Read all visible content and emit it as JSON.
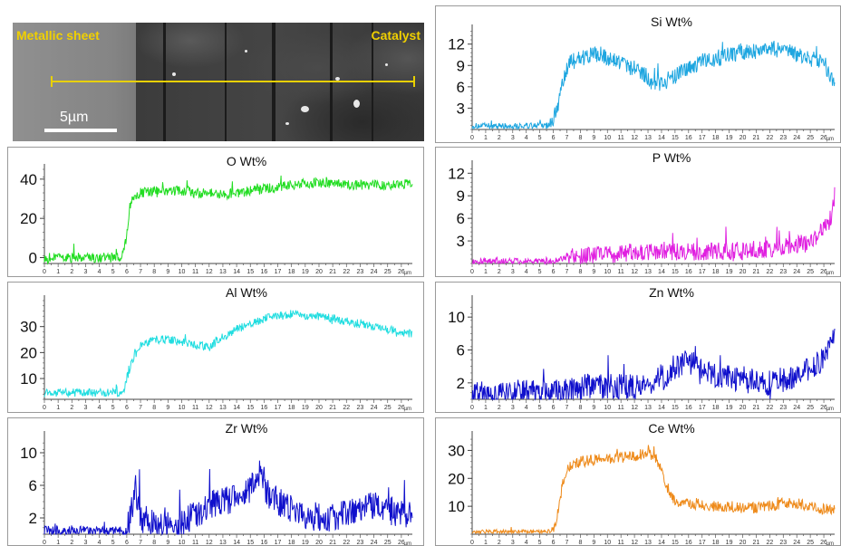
{
  "sem": {
    "left_label": "Metallic sheet",
    "right_label": "Catalyst",
    "scale_label": "5µm",
    "line_color": "#e8d000",
    "label_color": "#f0d000"
  },
  "chart_data": [
    {
      "id": "si",
      "type": "line",
      "title": "Si Wt%",
      "color": "#1ea6e0",
      "x_unit": "µm",
      "xlim": [
        0,
        26.8
      ],
      "ylim": [
        0,
        14
      ],
      "yticks": [
        3,
        6,
        9,
        12
      ],
      "xticks": [
        0,
        1,
        2,
        3,
        4,
        5,
        6,
        7,
        8,
        9,
        10,
        11,
        12,
        13,
        14,
        15,
        16,
        17,
        18,
        19,
        20,
        21,
        22,
        23,
        24,
        25,
        26
      ],
      "series": [
        {
          "x": [
            0,
            2,
            4,
            5.5,
            6,
            6.4,
            6.8,
            7.2,
            8,
            9,
            10,
            11,
            12,
            13,
            13.5,
            14,
            15,
            16,
            17,
            18,
            19,
            20,
            21,
            22,
            23,
            24,
            25,
            26,
            26.8
          ],
          "y": [
            0.5,
            0.5,
            0.5,
            0.5,
            1.5,
            4,
            7,
            9.5,
            10,
            10.5,
            10,
            9.5,
            8.5,
            7.5,
            6.5,
            6.5,
            7.5,
            8.5,
            9.5,
            10,
            10.5,
            11,
            11,
            11.5,
            11,
            10.5,
            10,
            9.5,
            6.5
          ],
          "noise": 1.2
        }
      ]
    },
    {
      "id": "o",
      "type": "line",
      "title": "O Wt%",
      "color": "#22dd22",
      "x_unit": "µm",
      "xlim": [
        0,
        26.8
      ],
      "ylim": [
        -3,
        45
      ],
      "yticks": [
        0,
        20,
        40
      ],
      "xticks": [
        0,
        1,
        2,
        3,
        4,
        5,
        6,
        7,
        8,
        9,
        10,
        11,
        12,
        13,
        14,
        15,
        16,
        17,
        18,
        19,
        20,
        21,
        22,
        23,
        24,
        25,
        26
      ],
      "series": [
        {
          "x": [
            0,
            2,
            4,
            5.5,
            5.8,
            6,
            6.2,
            6.5,
            7,
            8,
            9,
            10,
            11,
            12,
            13,
            14,
            15,
            16,
            17,
            18,
            19,
            20,
            21,
            22,
            23,
            24,
            25,
            26,
            26.8
          ],
          "y": [
            0,
            0,
            0,
            0,
            3,
            12,
            25,
            31,
            33,
            34,
            34,
            34,
            33,
            33,
            32,
            33,
            34,
            35,
            36,
            37,
            38,
            38,
            38,
            37,
            37,
            37,
            37,
            37,
            38
          ],
          "noise": 2.5
        }
      ]
    },
    {
      "id": "p",
      "type": "line",
      "title": "P Wt%",
      "color": "#e020e0",
      "x_unit": "µm",
      "xlim": [
        0,
        26.8
      ],
      "ylim": [
        0,
        13
      ],
      "yticks": [
        3,
        6,
        9,
        12
      ],
      "xticks": [
        0,
        1,
        2,
        3,
        4,
        5,
        6,
        7,
        8,
        9,
        10,
        11,
        12,
        13,
        14,
        15,
        16,
        17,
        18,
        19,
        20,
        21,
        22,
        23,
        24,
        25,
        26
      ],
      "series": [
        {
          "x": [
            0,
            2,
            4,
            6,
            7,
            8,
            10,
            12,
            14,
            16,
            18,
            20,
            22,
            24,
            25,
            26,
            26.5,
            26.8
          ],
          "y": [
            0.3,
            0.3,
            0.3,
            0.3,
            0.8,
            1,
            1.2,
            1.4,
            1.5,
            1.5,
            1.6,
            1.7,
            2,
            2.5,
            3,
            4.5,
            6,
            9
          ],
          "noise": 1.2
        }
      ]
    },
    {
      "id": "al",
      "type": "line",
      "title": "Al Wt%",
      "color": "#20dde0",
      "x_unit": "µm",
      "xlim": [
        0,
        26.8
      ],
      "ylim": [
        2,
        40
      ],
      "yticks": [
        10,
        20,
        30
      ],
      "xticks": [
        0,
        1,
        2,
        3,
        4,
        5,
        6,
        7,
        8,
        9,
        10,
        11,
        12,
        13,
        14,
        15,
        16,
        17,
        18,
        19,
        20,
        21,
        22,
        23,
        24,
        25,
        26
      ],
      "series": [
        {
          "x": [
            0,
            2,
            4,
            5.5,
            5.8,
            6,
            6.4,
            7,
            8,
            9,
            10,
            11,
            12,
            13,
            14,
            15,
            16,
            17,
            18,
            19,
            20,
            21,
            22,
            23,
            24,
            25,
            26,
            26.8
          ],
          "y": [
            4.5,
            4.5,
            4.5,
            4.5,
            6,
            10,
            17,
            23,
            25,
            25,
            24,
            23,
            22,
            26,
            29,
            31,
            33,
            34,
            35,
            34,
            34,
            33,
            32,
            31,
            30,
            29,
            28,
            27
          ],
          "noise": 1.6
        }
      ]
    },
    {
      "id": "zn",
      "type": "line",
      "title": "Zn Wt%",
      "color": "#1010cc",
      "x_unit": "µm",
      "xlim": [
        0,
        26.8
      ],
      "ylim": [
        0,
        12
      ],
      "yticks": [
        2,
        6,
        10
      ],
      "xticks": [
        0,
        1,
        2,
        3,
        4,
        5,
        6,
        7,
        8,
        9,
        10,
        11,
        12,
        13,
        14,
        15,
        16,
        17,
        18,
        19,
        20,
        21,
        22,
        23,
        24,
        25,
        26
      ],
      "series": [
        {
          "x": [
            0,
            2,
            4,
            6,
            7,
            8,
            10,
            12,
            13,
            14,
            15,
            16,
            17,
            18,
            19,
            20,
            21,
            22,
            23,
            24,
            25,
            26,
            26.8
          ],
          "y": [
            0.8,
            0.8,
            0.8,
            0.8,
            1.2,
            1.5,
            1.5,
            1.5,
            1.8,
            2.5,
            4,
            4.5,
            3.5,
            3,
            2.5,
            2.5,
            2,
            2,
            2.5,
            3,
            3.5,
            5,
            7.5
          ],
          "noise": 1.6
        }
      ]
    },
    {
      "id": "zr",
      "type": "line",
      "title": "Zr Wt%",
      "color": "#1010cc",
      "x_unit": "µm",
      "xlim": [
        0,
        26.8
      ],
      "ylim": [
        0,
        12
      ],
      "yticks": [
        2,
        6,
        10
      ],
      "xticks": [
        0,
        1,
        2,
        3,
        4,
        5,
        6,
        7,
        8,
        9,
        10,
        11,
        12,
        13,
        14,
        15,
        16,
        17,
        18,
        19,
        20,
        21,
        22,
        23,
        24,
        25,
        26
      ],
      "series": [
        {
          "x": [
            0,
            2,
            4,
            6,
            6.4,
            6.6,
            6.8,
            7,
            8,
            10,
            11,
            12,
            13,
            14,
            15,
            15.8,
            16.2,
            17,
            18,
            19,
            20,
            21,
            22,
            23,
            24,
            25,
            26,
            26.8
          ],
          "y": [
            0.5,
            0.5,
            0.5,
            0.5,
            3.5,
            6,
            4,
            2,
            1.2,
            1.2,
            2.5,
            3.5,
            4,
            4.5,
            5.5,
            8,
            5,
            4,
            3,
            2.5,
            2,
            2,
            2.5,
            3,
            3.5,
            3,
            2.5,
            2
          ],
          "noise": 1.8
        }
      ]
    },
    {
      "id": "ce",
      "type": "line",
      "title": "Ce Wt%",
      "color": "#ee8a1a",
      "x_unit": "µm",
      "xlim": [
        0,
        26.8
      ],
      "ylim": [
        0,
        35
      ],
      "yticks": [
        10,
        20,
        30
      ],
      "xticks": [
        0,
        1,
        2,
        3,
        4,
        5,
        6,
        7,
        8,
        9,
        10,
        11,
        12,
        13,
        14,
        15,
        16,
        17,
        18,
        19,
        20,
        21,
        22,
        23,
        24,
        25,
        26
      ],
      "series": [
        {
          "x": [
            0,
            2,
            4,
            5.8,
            6.2,
            6.6,
            7,
            8,
            9,
            10,
            11,
            12,
            13,
            13.5,
            14,
            14.5,
            15,
            16,
            17,
            18,
            19,
            20,
            21,
            22,
            23,
            24,
            25,
            26,
            26.8
          ],
          "y": [
            1,
            1,
            1,
            1,
            4,
            15,
            24,
            26,
            26.5,
            27,
            27.5,
            28,
            29,
            28,
            23,
            16,
            12,
            11,
            10.5,
            10,
            10,
            9.5,
            9.5,
            10,
            11,
            11,
            10,
            9,
            9
          ],
          "noise": 2.0
        }
      ]
    }
  ]
}
